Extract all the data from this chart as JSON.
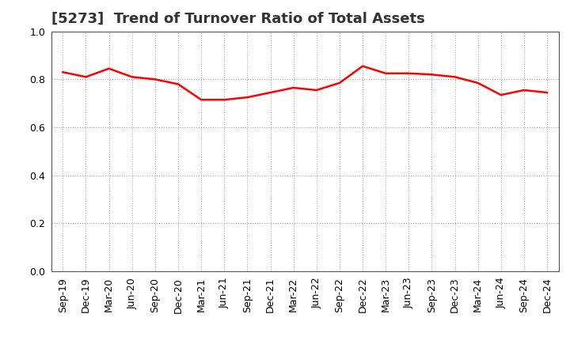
{
  "title": "[5273]  Trend of Turnover Ratio of Total Assets",
  "x_labels": [
    "Sep-19",
    "Dec-19",
    "Mar-20",
    "Jun-20",
    "Sep-20",
    "Dec-20",
    "Mar-21",
    "Jun-21",
    "Sep-21",
    "Dec-21",
    "Mar-22",
    "Jun-22",
    "Sep-22",
    "Dec-22",
    "Mar-23",
    "Jun-23",
    "Sep-23",
    "Dec-23",
    "Mar-24",
    "Jun-24",
    "Sep-24",
    "Dec-24"
  ],
  "y_values": [
    0.83,
    0.81,
    0.845,
    0.81,
    0.8,
    0.78,
    0.715,
    0.715,
    0.725,
    0.745,
    0.765,
    0.755,
    0.785,
    0.855,
    0.825,
    0.825,
    0.82,
    0.81,
    0.785,
    0.735,
    0.755,
    0.745
  ],
  "line_color": "#FF0000",
  "line_width": 1.8,
  "ylim": [
    0.0,
    1.0
  ],
  "yticks": [
    0.0,
    0.2,
    0.4,
    0.6,
    0.8,
    1.0
  ],
  "grid_color": "#aaaaaa",
  "grid_linestyle": "dotted",
  "bg_color": "#ffffff",
  "plot_bg_color": "#ffffff",
  "title_fontsize": 13,
  "tick_fontsize": 9,
  "title_color": "#333333"
}
